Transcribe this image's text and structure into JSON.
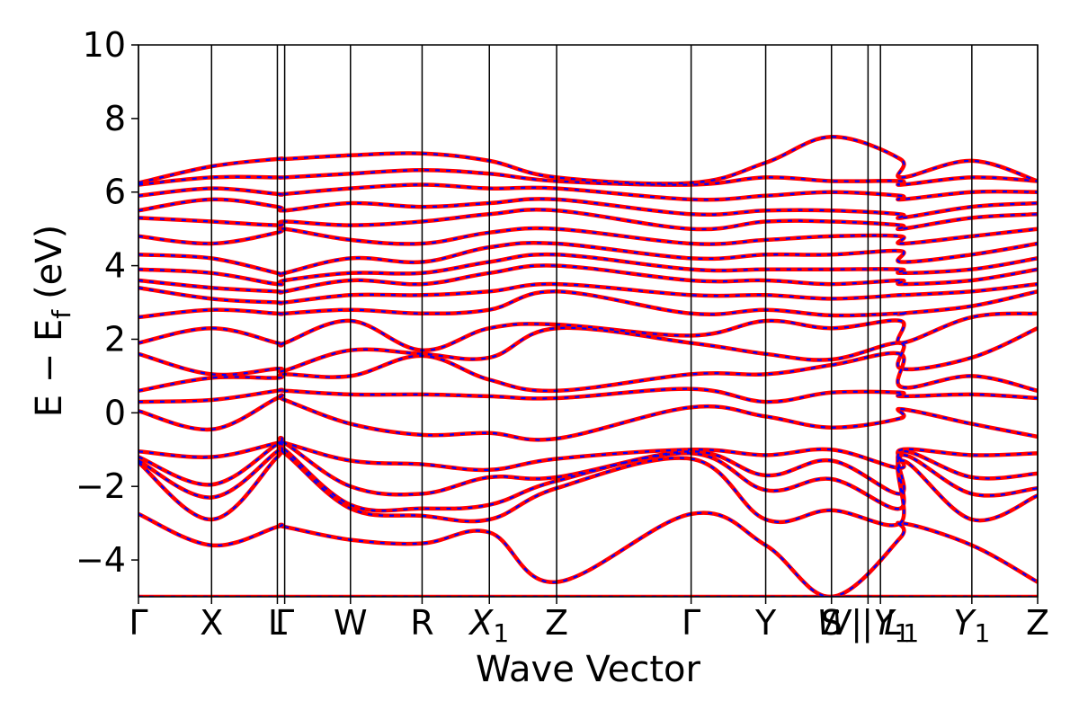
{
  "chart_data": {
    "type": "line",
    "xlabel": "Wave Vector",
    "ylabel": "E − E",
    "ylabel_subscript": "f",
    "ylabel_unit": "(eV)",
    "ylim": [
      -5,
      10
    ],
    "yticks": [
      {
        "value": -4,
        "label": "−4"
      },
      {
        "value": -2,
        "label": "−2"
      },
      {
        "value": 0,
        "label": "0"
      },
      {
        "value": 2,
        "label": "2"
      },
      {
        "value": 4,
        "label": "4"
      },
      {
        "value": 6,
        "label": "6"
      },
      {
        "value": 8,
        "label": "8"
      },
      {
        "value": 10,
        "label": "10"
      }
    ],
    "xlim": [
      0,
      12.3
    ],
    "high_symmetry_points": [
      {
        "x": 0.0,
        "label": "Γ",
        "sub": ""
      },
      {
        "x": 1.0,
        "label": "X",
        "sub": ""
      },
      {
        "x": 1.9,
        "label": "L",
        "sub": ""
      },
      {
        "x": 2.0,
        "label": "Γ",
        "sub": ""
      },
      {
        "x": 2.9,
        "label": "W",
        "sub": ""
      },
      {
        "x": 3.88,
        "label": "R",
        "sub": ""
      },
      {
        "x": 4.8,
        "label": "X",
        "sub": "1"
      },
      {
        "x": 5.72,
        "label": "Z",
        "sub": ""
      },
      {
        "x": 7.56,
        "label": "Γ",
        "sub": ""
      },
      {
        "x": 8.58,
        "label": "Y",
        "sub": ""
      },
      {
        "x": 9.48,
        "label": "S",
        "sub": ""
      },
      {
        "x": 9.98,
        "label": "W | L",
        "sub": "1"
      },
      {
        "x": 10.15,
        "label": "| Y",
        "sub": "1"
      },
      {
        "x": 11.4,
        "label": "Y",
        "sub": "1"
      },
      {
        "x": 12.3,
        "label": "Z",
        "sub": ""
      }
    ],
    "kpath_x": [
      0.0,
      1.0,
      1.9,
      2.0,
      2.9,
      3.88,
      4.8,
      5.72,
      7.56,
      8.58,
      9.48,
      10.42,
      10.44,
      11.4,
      12.3
    ],
    "series": [
      {
        "color": "#ff0000",
        "style": "solid",
        "bands": [
          [
            -5.0,
            -5.0,
            -5.0,
            -5.0,
            -5.0,
            -5.0,
            -5.0,
            -5.0,
            -5.0,
            -5.0,
            -5.0,
            -5.0,
            -5.0,
            -5.0,
            -5.0
          ],
          [
            -2.75,
            -3.6,
            -3.1,
            -3.1,
            -3.45,
            -3.55,
            -3.25,
            -4.6,
            -2.75,
            -3.6,
            -5.0,
            -3.4,
            -3.0,
            -3.6,
            -4.6
          ],
          [
            -1.35,
            -2.9,
            -1.2,
            -1.1,
            -2.6,
            -2.8,
            -2.9,
            -2.05,
            -1.25,
            -2.9,
            -2.65,
            -3.0,
            -1.3,
            -2.9,
            -2.25
          ],
          [
            -1.3,
            -2.3,
            -1.05,
            -1.0,
            -2.5,
            -2.6,
            -2.5,
            -1.85,
            -1.1,
            -2.1,
            -1.8,
            -2.6,
            -1.15,
            -2.2,
            -2.05
          ],
          [
            -1.2,
            -1.95,
            -0.85,
            -0.82,
            -2.0,
            -2.2,
            -1.75,
            -1.75,
            -1.05,
            -1.7,
            -1.3,
            -2.2,
            -1.05,
            -1.75,
            -1.65
          ],
          [
            -1.05,
            -1.2,
            -0.82,
            -0.82,
            -1.3,
            -1.4,
            -1.55,
            -1.25,
            -1.0,
            -1.15,
            -1.0,
            -1.5,
            -1.0,
            -1.15,
            -1.1
          ],
          [
            0.05,
            -0.45,
            0.4,
            0.35,
            -0.3,
            -0.6,
            -0.55,
            -0.7,
            0.15,
            -0.1,
            -0.4,
            -0.15,
            0.1,
            -0.3,
            -0.65
          ],
          [
            0.3,
            0.35,
            0.6,
            0.6,
            0.5,
            0.5,
            0.45,
            0.4,
            0.65,
            0.3,
            0.55,
            0.55,
            0.45,
            0.5,
            0.4
          ],
          [
            0.6,
            0.95,
            0.95,
            1.05,
            1.0,
            1.55,
            0.9,
            0.6,
            1.05,
            1.05,
            1.3,
            1.6,
            0.7,
            1.0,
            0.6
          ],
          [
            1.6,
            1.05,
            1.2,
            1.15,
            1.7,
            1.6,
            1.5,
            2.3,
            1.9,
            1.6,
            1.45,
            1.9,
            1.2,
            1.5,
            2.3
          ],
          [
            1.9,
            2.3,
            1.9,
            1.9,
            2.5,
            1.7,
            2.3,
            2.4,
            2.1,
            2.5,
            2.3,
            2.5,
            1.9,
            2.6,
            2.7
          ],
          [
            2.6,
            2.8,
            2.7,
            2.7,
            2.8,
            2.7,
            2.8,
            3.3,
            2.7,
            2.8,
            2.65,
            2.7,
            2.7,
            2.9,
            3.3
          ],
          [
            3.4,
            3.1,
            3.0,
            3.0,
            3.2,
            3.2,
            3.3,
            3.5,
            3.2,
            3.2,
            3.1,
            3.2,
            3.2,
            3.3,
            3.5
          ],
          [
            3.6,
            3.4,
            3.3,
            3.3,
            3.6,
            3.5,
            3.8,
            4.0,
            3.6,
            3.6,
            3.5,
            3.6,
            3.5,
            3.6,
            3.9
          ],
          [
            3.9,
            3.8,
            3.5,
            3.6,
            3.8,
            3.8,
            4.1,
            4.3,
            3.9,
            3.9,
            3.9,
            3.9,
            3.8,
            3.9,
            4.2
          ],
          [
            4.3,
            4.2,
            3.8,
            3.8,
            4.2,
            4.1,
            4.5,
            4.6,
            4.2,
            4.3,
            4.3,
            4.4,
            4.1,
            4.3,
            4.6
          ],
          [
            4.8,
            4.6,
            4.9,
            5.0,
            4.7,
            4.6,
            4.9,
            5.0,
            4.6,
            4.7,
            4.8,
            4.8,
            4.6,
            4.8,
            5.0
          ],
          [
            5.3,
            5.2,
            5.1,
            5.2,
            5.1,
            5.2,
            5.4,
            5.5,
            5.0,
            5.2,
            5.2,
            5.1,
            5.0,
            5.3,
            5.4
          ],
          [
            5.5,
            5.8,
            5.6,
            5.5,
            5.7,
            5.6,
            5.7,
            5.8,
            5.4,
            5.5,
            5.5,
            5.4,
            5.3,
            5.6,
            5.7
          ],
          [
            5.9,
            6.1,
            5.95,
            5.95,
            6.1,
            6.2,
            6.1,
            6.1,
            5.8,
            5.9,
            6.0,
            5.9,
            5.8,
            6.0,
            6.0
          ],
          [
            6.2,
            6.4,
            6.4,
            6.4,
            6.5,
            6.6,
            6.5,
            6.3,
            6.2,
            6.4,
            6.3,
            6.3,
            6.2,
            6.4,
            6.3
          ],
          [
            6.25,
            6.7,
            6.9,
            6.9,
            7.0,
            7.05,
            6.85,
            6.4,
            6.25,
            6.8,
            7.5,
            6.9,
            6.4,
            6.85,
            6.3
          ]
        ]
      },
      {
        "color": "#0000ff",
        "style": "dashed",
        "bands_ref": "same_as_series_0"
      }
    ]
  }
}
